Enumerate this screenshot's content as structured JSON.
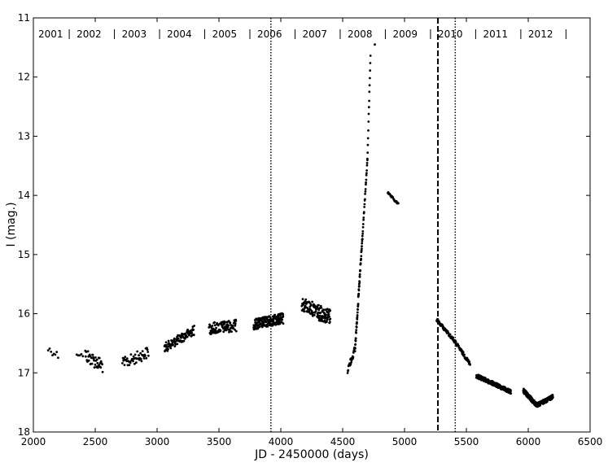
{
  "chart_data": {
    "type": "scatter",
    "title": "",
    "xlabel": "JD - 2450000 (days)",
    "ylabel": "I (mag.)",
    "xlim": [
      2000,
      6500
    ],
    "ylim": [
      18,
      11
    ],
    "y_inverted": true,
    "grid": false,
    "x_ticks": [
      2000,
      2500,
      3000,
      3500,
      4000,
      4500,
      5000,
      5500,
      6000,
      6500
    ],
    "y_ticks": [
      11,
      12,
      13,
      14,
      15,
      16,
      17,
      18
    ],
    "year_labels": [
      {
        "label": "2001",
        "x": 2140
      },
      {
        "label": "2002",
        "x": 2450
      },
      {
        "label": "2003",
        "x": 2815
      },
      {
        "label": "2004",
        "x": 3180
      },
      {
        "label": "2005",
        "x": 3545
      },
      {
        "label": "2006",
        "x": 3910
      },
      {
        "label": "2007",
        "x": 4275
      },
      {
        "label": "2008",
        "x": 4640
      },
      {
        "label": "2009",
        "x": 5005
      },
      {
        "label": "2010",
        "x": 5370
      },
      {
        "label": "2011",
        "x": 5735
      },
      {
        "label": "2012",
        "x": 6100
      }
    ],
    "year_separators": [
      2290,
      2655,
      3020,
      3385,
      3750,
      4115,
      4480,
      4845,
      5210,
      5575,
      5940,
      6305
    ],
    "vertical_lines": [
      {
        "x": 3920,
        "style": "dotted"
      },
      {
        "x": 5270,
        "style": "dashed"
      },
      {
        "x": 5410,
        "style": "dotted"
      }
    ],
    "segments": [
      {
        "x0": 2120,
        "x1": 2200,
        "y_start": 16.6,
        "y_end": 16.7,
        "scatter": 0.06,
        "n": 8
      },
      {
        "x0": 2350,
        "x1": 2400,
        "y_start": 16.68,
        "y_end": 16.7,
        "scatter": 0.03,
        "n": 5
      },
      {
        "x0": 2420,
        "x1": 2560,
        "y_start": 16.7,
        "y_end": 16.88,
        "scatter": 0.12,
        "n": 45
      },
      {
        "x0": 2720,
        "x1": 2930,
        "y_start": 16.85,
        "y_end": 16.65,
        "scatter": 0.1,
        "n": 50
      },
      {
        "x0": 3060,
        "x1": 3300,
        "y_start": 16.58,
        "y_end": 16.28,
        "scatter": 0.08,
        "n": 110
      },
      {
        "x0": 3420,
        "x1": 3640,
        "y_start": 16.25,
        "y_end": 16.2,
        "scatter": 0.1,
        "n": 100
      },
      {
        "x0": 3780,
        "x1": 4020,
        "y_start": 16.18,
        "y_end": 16.08,
        "scatter": 0.09,
        "n": 190
      },
      {
        "x0": 4170,
        "x1": 4300,
        "y_start": 15.85,
        "y_end": 15.95,
        "scatter": 0.12,
        "n": 70
      },
      {
        "x0": 4300,
        "x1": 4400,
        "y_start": 15.98,
        "y_end": 16.05,
        "scatter": 0.13,
        "n": 70
      },
      {
        "x0": 4540,
        "x1": 4600,
        "y_start": 16.95,
        "y_end": 16.6,
        "scatter": 0.06,
        "n": 25
      },
      {
        "x0": 4600,
        "x1": 4660,
        "y_start": 16.6,
        "y_end": 14.7,
        "scatter": 0.05,
        "n": 60
      },
      {
        "x0": 4660,
        "x1": 4700,
        "y_start": 14.7,
        "y_end": 13.4,
        "scatter": 0.02,
        "n": 25
      },
      {
        "x0": 4700,
        "x1": 4725,
        "y_start": 13.4,
        "y_end": 11.63,
        "scatter": 0.02,
        "n": 15
      },
      {
        "x0": 4760,
        "x1": 4765,
        "y_start": 11.45,
        "y_end": 11.45,
        "scatter": 0.0,
        "n": 1
      },
      {
        "x0": 4865,
        "x1": 4950,
        "y_start": 13.96,
        "y_end": 14.15,
        "scatter": 0.02,
        "n": 25
      },
      {
        "x0": 5260,
        "x1": 5400,
        "y_start": 16.1,
        "y_end": 16.45,
        "scatter": 0.03,
        "n": 60
      },
      {
        "x0": 5400,
        "x1": 5530,
        "y_start": 16.45,
        "y_end": 16.85,
        "scatter": 0.03,
        "n": 60
      },
      {
        "x0": 5580,
        "x1": 5860,
        "y_start": 17.05,
        "y_end": 17.32,
        "scatter": 0.035,
        "n": 220
      },
      {
        "x0": 5960,
        "x1": 6070,
        "y_start": 17.3,
        "y_end": 17.55,
        "scatter": 0.04,
        "n": 100
      },
      {
        "x0": 6070,
        "x1": 6200,
        "y_start": 17.55,
        "y_end": 17.4,
        "scatter": 0.035,
        "n": 120
      }
    ]
  }
}
